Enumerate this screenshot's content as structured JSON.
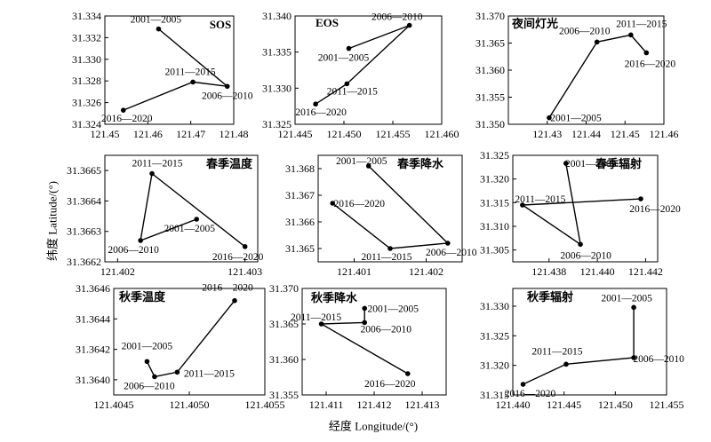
{
  "figure": {
    "ylabel": "纬度 Latitude/(°)",
    "xlabel": "经度 Longitude/(°)"
  },
  "chart_data": [
    {
      "type": "line",
      "title": "SOS",
      "xlim": [
        121.45,
        121.48
      ],
      "ylim": [
        31.324,
        31.334
      ],
      "xticks": [
        "121.45",
        "121.46",
        "121.47",
        "121.48"
      ],
      "yticks": [
        "31.324",
        "31.326",
        "31.328",
        "31.330",
        "31.332",
        "31.334"
      ],
      "points": [
        {
          "label": "2001—2005",
          "x": 121.4625,
          "y": 31.3328
        },
        {
          "label": "2006—2010",
          "x": 121.4785,
          "y": 31.3275
        },
        {
          "label": "2011—2015",
          "x": 121.4705,
          "y": 31.3279
        },
        {
          "label": "2016—2020",
          "x": 121.4543,
          "y": 31.3253
        }
      ]
    },
    {
      "type": "line",
      "title": "EOS",
      "xlim": [
        121.445,
        121.46
      ],
      "ylim": [
        31.325,
        31.34
      ],
      "xticks": [
        "121.445",
        "121.450",
        "121.455",
        "121.460"
      ],
      "yticks": [
        "31.325",
        "31.330",
        "31.335",
        "31.340"
      ],
      "points": [
        {
          "label": "2001—2005",
          "x": 121.4505,
          "y": 31.3355
        },
        {
          "label": "2006—2010",
          "x": 121.4567,
          "y": 31.3387
        },
        {
          "label": "2011—2015",
          "x": 121.4503,
          "y": 31.3306
        },
        {
          "label": "2016—2020",
          "x": 121.4471,
          "y": 31.3278
        }
      ]
    },
    {
      "type": "line",
      "title": "夜间灯光",
      "xlim": [
        121.42,
        121.46
      ],
      "ylim": [
        31.35,
        31.37
      ],
      "xticks": [
        "121.43",
        "121.44",
        "121.45",
        "121.46"
      ],
      "yticks": [
        "31.350",
        "31.355",
        "31.360",
        "31.365",
        "31.370"
      ],
      "points": [
        {
          "label": "2001—2005",
          "x": 121.4305,
          "y": 31.3512
        },
        {
          "label": "2006—2010",
          "x": 121.4428,
          "y": 31.3652
        },
        {
          "label": "2011—2015",
          "x": 121.4515,
          "y": 31.3665
        },
        {
          "label": "2016—2020",
          "x": 121.4555,
          "y": 31.3632
        }
      ]
    },
    {
      "type": "line",
      "title": "春季温度",
      "xlim": [
        121.4019,
        121.4031
      ],
      "ylim": [
        31.3662,
        31.36655
      ],
      "xticks": [
        "121.402",
        "121.403"
      ],
      "yticks": [
        "31.3662",
        "31.3663",
        "31.3664",
        "31.3665"
      ],
      "points": [
        {
          "label": "2001—2005",
          "x": 121.40262,
          "y": 31.36634
        },
        {
          "label": "2006—2010",
          "x": 121.40218,
          "y": 31.36627
        },
        {
          "label": "2011—2015",
          "x": 121.40227,
          "y": 31.36649
        },
        {
          "label": "2016—2020",
          "x": 121.403,
          "y": 31.36625
        }
      ]
    },
    {
      "type": "line",
      "title": "春季降水",
      "xlim": [
        121.4005,
        121.4025
      ],
      "ylim": [
        31.3645,
        31.3685
      ],
      "xticks": [
        "121.401",
        "121.402"
      ],
      "yticks": [
        "31.365",
        "31.366",
        "31.367",
        "31.368"
      ],
      "points": [
        {
          "label": "2001—2005",
          "x": 121.4012,
          "y": 31.3681
        },
        {
          "label": "2006—2010",
          "x": 121.4023,
          "y": 31.3652
        },
        {
          "label": "2011—2015",
          "x": 121.4015,
          "y": 31.365
        },
        {
          "label": "2016—2020",
          "x": 121.4007,
          "y": 31.3667
        }
      ]
    },
    {
      "type": "line",
      "title": "春季辐射",
      "xlim": [
        121.4365,
        121.4425
      ],
      "ylim": [
        31.3025,
        31.325
      ],
      "xticks": [
        "121.438",
        "121.440",
        "121.442"
      ],
      "yticks": [
        "31.305",
        "31.310",
        "31.315",
        "31.320",
        "31.325"
      ],
      "points": [
        {
          "label": "2001—2005",
          "x": 121.4387,
          "y": 31.3233
        },
        {
          "label": "2006—2010",
          "x": 121.4393,
          "y": 31.3062
        },
        {
          "label": "2011—2015",
          "x": 121.4369,
          "y": 31.3145
        },
        {
          "label": "2016—2020",
          "x": 121.4418,
          "y": 31.3158
        }
      ]
    },
    {
      "type": "line",
      "title": "秋季温度",
      "xlim": [
        121.4045,
        121.4055
      ],
      "ylim": [
        31.3639,
        31.3646
      ],
      "xticks": [
        "121.4045",
        "121.4050",
        "121.4055"
      ],
      "yticks": [
        "31.3640",
        "31.3642",
        "31.3644",
        "31.3646"
      ],
      "points": [
        {
          "label": "2001—2005",
          "x": 121.40472,
          "y": 31.36412
        },
        {
          "label": "2006—2010",
          "x": 121.40477,
          "y": 31.36402
        },
        {
          "label": "2011—2015",
          "x": 121.40492,
          "y": 31.36405
        },
        {
          "label": "2016—2020",
          "x": 121.4053,
          "y": 31.36452
        }
      ]
    },
    {
      "type": "line",
      "title": "秋季降水",
      "xlim": [
        121.4105,
        121.4135
      ],
      "ylim": [
        31.355,
        31.37
      ],
      "xticks": [
        "121.411",
        "121.412",
        "121.413"
      ],
      "yticks": [
        "31.355",
        "31.360",
        "31.365",
        "31.370"
      ],
      "points": [
        {
          "label": "2001—2005",
          "x": 121.4118,
          "y": 31.3672
        },
        {
          "label": "2006—2010",
          "x": 121.4118,
          "y": 31.3652
        },
        {
          "label": "2011—2015",
          "x": 121.4109,
          "y": 31.365
        },
        {
          "label": "2016—2020",
          "x": 121.4127,
          "y": 31.358
        }
      ]
    },
    {
      "type": "line",
      "title": "秋季辐射",
      "xlim": [
        121.44,
        121.455
      ],
      "ylim": [
        31.315,
        31.333
      ],
      "xticks": [
        "121.440",
        "121.445",
        "121.450",
        "121.455"
      ],
      "yticks": [
        "31.315",
        "31.320",
        "31.325",
        "31.330"
      ],
      "points": [
        {
          "label": "2001—2005",
          "x": 121.4518,
          "y": 31.3298
        },
        {
          "label": "2006—2010",
          "x": 121.4518,
          "y": 31.3213
        },
        {
          "label": "2011—2015",
          "x": 121.4452,
          "y": 31.3202
        },
        {
          "label": "2016—2020",
          "x": 121.441,
          "y": 31.3168
        }
      ]
    }
  ]
}
